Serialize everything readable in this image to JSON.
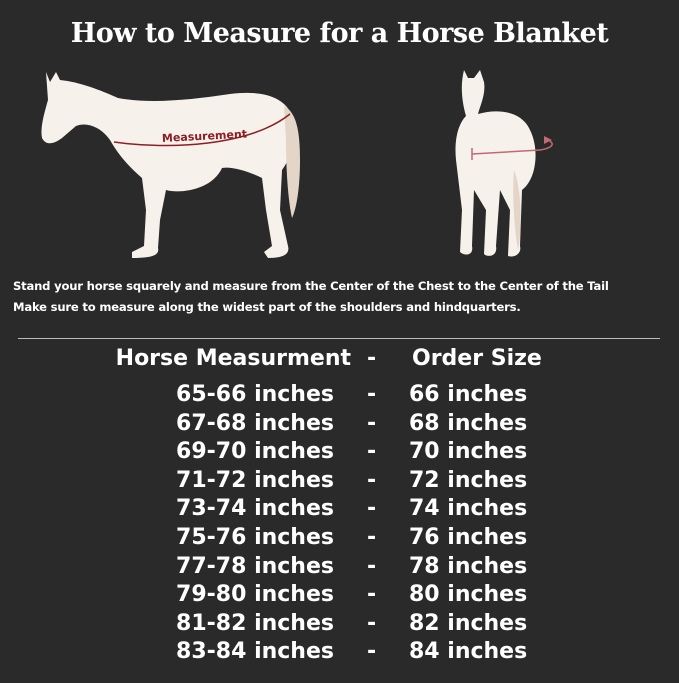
{
  "title": "How to Measure for a Horse Blanket",
  "illustration": {
    "label": "Measurement",
    "accent_color": "#8b1f24",
    "horse_color": "#f7f1ec"
  },
  "instructions": [
    "Stand your horse squarely and measure from the Center of the Chest to the Center of the Tail",
    "Make sure to measure along the widest part of the shoulders and hindquarters."
  ],
  "table": {
    "headers": {
      "measurement": "Horse Measurment",
      "separator": "-",
      "size": "Order Size"
    },
    "rows": [
      {
        "measurement": "65-66 inches",
        "separator": "-",
        "size": "66 inches"
      },
      {
        "measurement": "67-68 inches",
        "separator": "-",
        "size": "68 inches"
      },
      {
        "measurement": "69-70 inches",
        "separator": "-",
        "size": "70 inches"
      },
      {
        "measurement": "71-72 inches",
        "separator": "-",
        "size": "72 inches"
      },
      {
        "measurement": "73-74 inches",
        "separator": "-",
        "size": "74 inches"
      },
      {
        "measurement": "75-76 inches",
        "separator": "-",
        "size": "76 inches"
      },
      {
        "measurement": "77-78 inches",
        "separator": "-",
        "size": "78 inches"
      },
      {
        "measurement": "79-80 inches",
        "separator": "-",
        "size": "80 inches"
      },
      {
        "measurement": "81-82 inches",
        "separator": "-",
        "size": "82 inches"
      },
      {
        "measurement": "83-84 inches",
        "separator": "-",
        "size": "84 inches"
      }
    ]
  }
}
